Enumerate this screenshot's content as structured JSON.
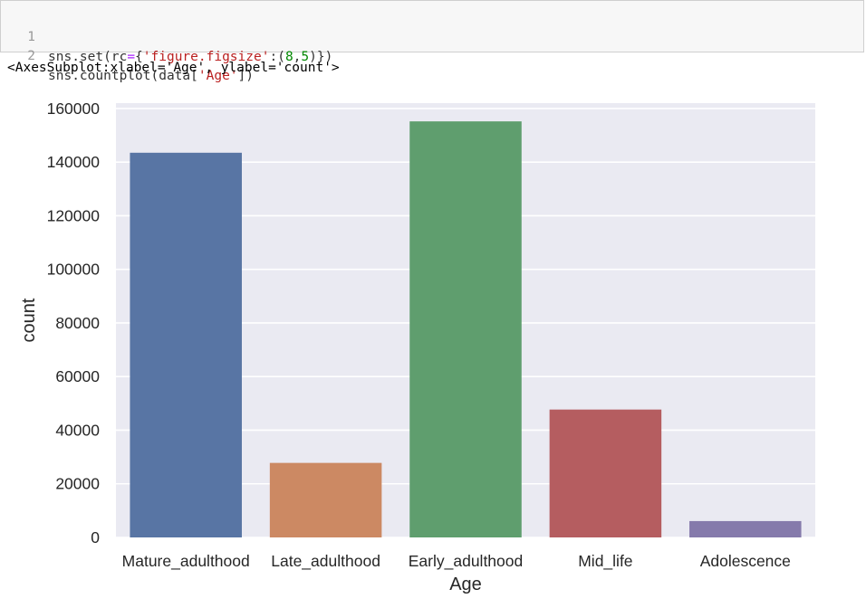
{
  "cell": {
    "lines": [
      {
        "num": "1",
        "tokens": [
          {
            "t": "sns.set(rc",
            "c": ""
          },
          {
            "t": "=",
            "c": "op"
          },
          {
            "t": "{",
            "c": ""
          },
          {
            "t": "'figure.figsize'",
            "c": "str"
          },
          {
            "t": ":(",
            "c": ""
          },
          {
            "t": "8",
            "c": "num"
          },
          {
            "t": ",",
            "c": ""
          },
          {
            "t": "5",
            "c": "num"
          },
          {
            "t": ")})",
            "c": ""
          }
        ]
      },
      {
        "num": "2",
        "tokens": [
          {
            "t": "sns.countplot(data[",
            "c": ""
          },
          {
            "t": "'Age'",
            "c": "str"
          },
          {
            "t": "])",
            "c": ""
          }
        ]
      }
    ]
  },
  "output": {
    "repr": "<AxesSubplot:xlabel='Age', ylabel='count'>"
  },
  "chart_data": {
    "type": "bar",
    "categories": [
      "Mature_adulthood",
      "Late_adulthood",
      "Early_adulthood",
      "Mid_life",
      "Adolescence"
    ],
    "values": [
      143500,
      27800,
      155200,
      47700,
      6100
    ],
    "colors": [
      "#5875a4",
      "#cc8963",
      "#5f9e6e",
      "#b55d60",
      "#857aab"
    ],
    "xlabel": "Age",
    "ylabel": "count",
    "ylim": [
      0,
      162000
    ],
    "yticks": [
      0,
      20000,
      40000,
      60000,
      80000,
      100000,
      120000,
      140000,
      160000
    ],
    "style": "seaborn darkgrid",
    "grid": true,
    "background": "#eaeaf2"
  }
}
